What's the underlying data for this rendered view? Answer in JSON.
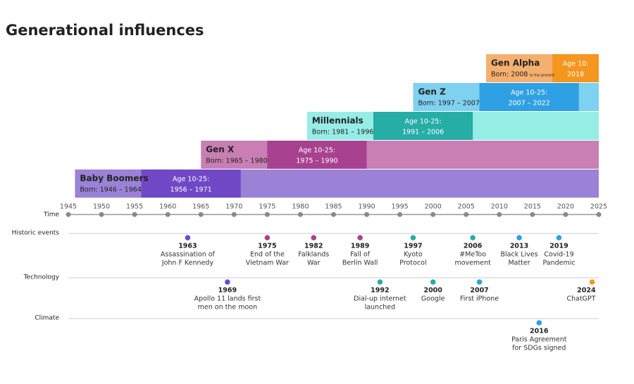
{
  "chart_data": {
    "type": "timeline",
    "title": "Generational influences",
    "x_label": "Time",
    "xlim": [
      1945,
      2025
    ],
    "xticks": [
      1945,
      1950,
      1955,
      1960,
      1965,
      1970,
      1975,
      1980,
      1985,
      1990,
      1995,
      2000,
      2005,
      2010,
      2015,
      2020,
      2025
    ],
    "generations": [
      {
        "name": "Baby Boomers",
        "born_label": "Born: 1946 – 1964",
        "born": [
          1946,
          1964
        ],
        "age_label": "Age 10-25:",
        "age_range_label": "1956 – 1971",
        "age": [
          1956,
          1971
        ],
        "color": "#9b82d6",
        "dark_color": "#7048c6"
      },
      {
        "name": "Gen X",
        "born_label": "Born: 1965 – 1980",
        "born": [
          1965,
          1980
        ],
        "age_label": "Age 10-25:",
        "age_range_label": "1975 – 1990",
        "age": [
          1975,
          1990
        ],
        "color": "#c97fb4",
        "dark_color": "#a8418f"
      },
      {
        "name": "Millennials",
        "born_label": "Born: 1981 – 1996",
        "born": [
          1981,
          1996
        ],
        "age_label": "Age 10-25:",
        "age_range_label": "1991 – 2006",
        "age": [
          1991,
          2006
        ],
        "color": "#96ede6",
        "dark_color": "#26ada6"
      },
      {
        "name": "Gen Z",
        "born_label": "Born: 1997 – 2007",
        "born": [
          1997,
          2007
        ],
        "age_label": "Age 10-25:",
        "age_range_label": "2007 – 2022",
        "age": [
          2007,
          2022
        ],
        "color": "#7fd1f0",
        "dark_color": "#2fa0e3"
      },
      {
        "name": "Gen Alpha",
        "born_label": "Born: 2008",
        "born_note": "to the present",
        "born": [
          2008
        ],
        "age_label": "Age 10:",
        "age": [
          2018
        ],
        "color": "#f5b070",
        "dark_color": "#f5961e"
      }
    ],
    "tracks": [
      {
        "name": "Historic events",
        "events": [
          {
            "x": 1963,
            "text": [
              "Assassination of",
              "John F Kennedy"
            ],
            "color": "#7048c6"
          },
          {
            "x": 1975,
            "text": [
              "End of the",
              "Vietnam War"
            ],
            "color": "#a8418f"
          },
          {
            "x": 1982,
            "text": [
              "Falklands",
              "War"
            ],
            "color": "#a8418f"
          },
          {
            "x": 1989,
            "text": [
              "Fall of",
              "Berlin Wall"
            ],
            "color": "#a8418f"
          },
          {
            "x": 1997,
            "text": [
              "Kyoto",
              "Protocol"
            ],
            "color": "#26ada6"
          },
          {
            "x": 2006,
            "text": [
              "#MeToo",
              "movement"
            ],
            "color": "#26ada6"
          },
          {
            "x": 2013,
            "text": [
              "Black Lives",
              "Matter"
            ],
            "color": "#2fa0e3"
          },
          {
            "x": 2019,
            "text": [
              "Covid-19",
              "Pandemic"
            ],
            "color": "#2fa0e3"
          }
        ]
      },
      {
        "name": "Technology",
        "events": [
          {
            "x": 1969,
            "text": [
              "Apollo 11 lands first",
              "men on the moon"
            ],
            "color": "#7048c6"
          },
          {
            "x": 1992,
            "text": [
              "Dial-up internet",
              "launched"
            ],
            "color": "#26ada6"
          },
          {
            "x": 2000,
            "text": [
              "Google"
            ],
            "color": "#26ada6"
          },
          {
            "x": 2007,
            "text": [
              "First iPhone"
            ],
            "color": "#2fa0e3"
          },
          {
            "x": 2024,
            "text": [
              "ChatGPT"
            ],
            "color": "#f5961e"
          }
        ]
      },
      {
        "name": "Climate",
        "events": [
          {
            "x": 2016,
            "text": [
              "Paris Agreement",
              "for SDGs signed"
            ],
            "color": "#2fa0e3"
          }
        ]
      }
    ]
  }
}
